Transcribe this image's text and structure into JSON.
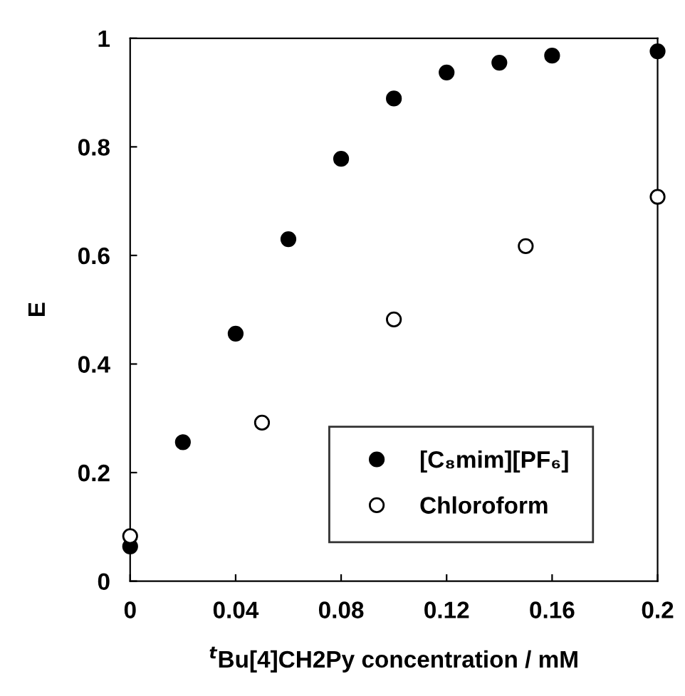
{
  "chart_data": {
    "type": "scatter",
    "xlabel": "$^{t}$Bu[4]CH2Py concentration / mM",
    "ylabel": "E",
    "xlim": [
      0,
      0.2
    ],
    "ylim": [
      0,
      1
    ],
    "xticks": [
      0,
      0.04,
      0.08,
      0.12,
      0.16,
      0.2
    ],
    "yticks": [
      0,
      0.2,
      0.4,
      0.6,
      0.8,
      1
    ],
    "grid": false,
    "legend": "bottom right",
    "marker": "circle",
    "series": [
      {
        "name": "[C₈mim][PF₆]",
        "color": "#000000",
        "x": [
          0,
          0.02,
          0.04,
          0.06,
          0.08,
          0.1,
          0.12,
          0.14,
          0.16,
          0.2
        ],
        "values": [
          0.064,
          0.256,
          0.456,
          0.63,
          0.778,
          0.889,
          0.937,
          0.955,
          0.968,
          0.976
        ]
      },
      {
        "name": "Chloroform",
        "color": "#ffffff",
        "x": [
          0,
          0.05,
          0.1,
          0.15,
          0.2
        ],
        "values": [
          0.083,
          0.292,
          0.482,
          0.617,
          0.708
        ]
      }
    ]
  }
}
